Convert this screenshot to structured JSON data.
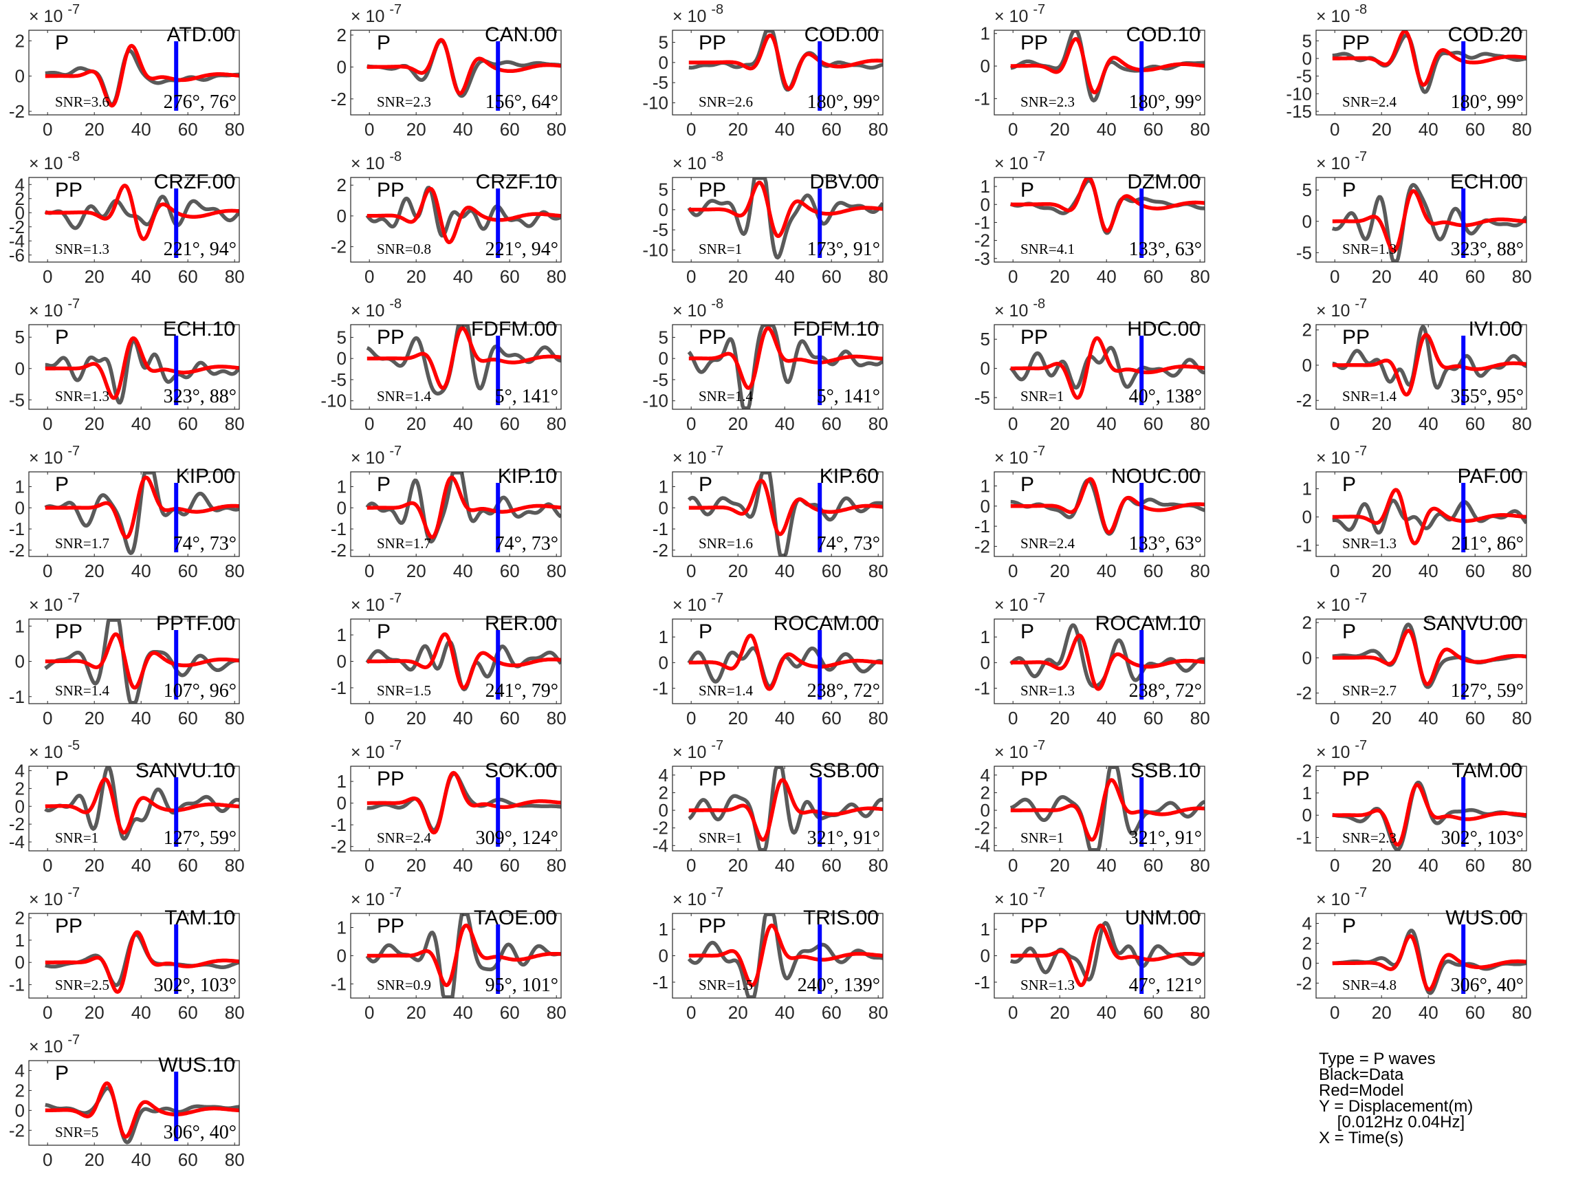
{
  "chart_data": {
    "type": "line",
    "x_ticks": [
      0,
      20,
      40,
      60,
      80
    ],
    "xlim": [
      -8,
      82
    ],
    "series_colors": {
      "data": "#5a5a5a",
      "model": "#ff0000",
      "marker": "#0000ff"
    },
    "legend": [
      "Type = P waves",
      "Black=Data",
      "Red=Model",
      "Y = Displacement(m)",
      "    [0.012Hz 0.04Hz]",
      "X = Time(s)"
    ],
    "panels": [
      {
        "station": "ATD.00",
        "phase": "P",
        "snr": "SNR=3.6",
        "azinc": "276°, 76°",
        "exp": "× 10 ^{-7}",
        "yticks": [
          2,
          0,
          -2
        ],
        "ylim": [
          -2.2,
          2.6
        ],
        "amp": 2.0
      },
      {
        "station": "CAN.00",
        "phase": "P",
        "snr": "SNR=2.3",
        "azinc": "156°, 64°",
        "exp": "× 10 ^{-7}",
        "yticks": [
          2,
          0,
          -2
        ],
        "ylim": [
          -3,
          2.3
        ],
        "amp": 2.0
      },
      {
        "station": "COD.00",
        "phase": "PP",
        "snr": "SNR=2.6",
        "azinc": "180°, 99°",
        "exp": "× 10 ^{-8}",
        "yticks": [
          5,
          0,
          -5,
          -10
        ],
        "ylim": [
          -13,
          8
        ],
        "amp": 6.0
      },
      {
        "station": "COD.10",
        "phase": "PP",
        "snr": "SNR=2.3",
        "azinc": "180°, 99°",
        "exp": "× 10 ^{-7}",
        "yticks": [
          1,
          0,
          -1
        ],
        "ylim": [
          -1.5,
          1.1
        ],
        "amp": 0.8
      },
      {
        "station": "COD.20",
        "phase": "PP",
        "snr": "SNR=2.4",
        "azinc": "180°, 99°",
        "exp": "× 10 ^{-8}",
        "yticks": [
          5,
          0,
          -5,
          -10,
          -15
        ],
        "ylim": [
          -16,
          8
        ],
        "amp": 6.0
      },
      {
        "station": "CRZF.00",
        "phase": "PP",
        "snr": "SNR=1.3",
        "azinc": "221°, 94°",
        "exp": "× 10 ^{-8}",
        "yticks": [
          4,
          2,
          0,
          -2,
          -4,
          -6
        ],
        "ylim": [
          -7,
          5
        ],
        "amp": 3.5
      },
      {
        "station": "CRZF.10",
        "phase": "PP",
        "snr": "SNR=0.8",
        "azinc": "221°, 94°",
        "exp": "× 10 ^{-8}",
        "yticks": [
          2,
          0,
          -2
        ],
        "ylim": [
          -3,
          2.5
        ],
        "amp": 2.0
      },
      {
        "station": "DBV.00",
        "phase": "PP",
        "snr": "SNR=1",
        "azinc": "173°, 91°",
        "exp": "× 10 ^{-8}",
        "yticks": [
          5,
          0,
          -5,
          -10
        ],
        "ylim": [
          -13,
          8
        ],
        "amp": 6.5
      },
      {
        "station": "DZM.00",
        "phase": "P",
        "snr": "SNR=4.1",
        "azinc": "133°, 63°",
        "exp": "× 10 ^{-7}",
        "yticks": [
          1,
          0,
          -1,
          -2,
          -3
        ],
        "ylim": [
          -3.2,
          1.5
        ],
        "amp": 1.5
      },
      {
        "station": "ECH.00",
        "phase": "P",
        "snr": "SNR=1.3",
        "azinc": "323°, 88°",
        "exp": "× 10 ^{-7}",
        "yticks": [
          5,
          0,
          -5
        ],
        "ylim": [
          -6.5,
          7
        ],
        "amp": 6.0
      },
      {
        "station": "ECH.10",
        "phase": "P",
        "snr": "SNR=1.3",
        "azinc": "323°, 88°",
        "exp": "× 10 ^{-7}",
        "yticks": [
          5,
          0,
          -5
        ],
        "ylim": [
          -6.5,
          7
        ],
        "amp": 6.0
      },
      {
        "station": "FDFM.00",
        "phase": "PP",
        "snr": "SNR=1.4",
        "azinc": "5°, 141°",
        "exp": "× 10 ^{-8}",
        "yticks": [
          5,
          0,
          -5,
          -10
        ],
        "ylim": [
          -12,
          8
        ],
        "amp": 7.0
      },
      {
        "station": "FDFM.10",
        "phase": "PP",
        "snr": "SNR=1.4",
        "azinc": "5°, 141°",
        "exp": "× 10 ^{-8}",
        "yticks": [
          5,
          0,
          -5,
          -10
        ],
        "ylim": [
          -12,
          8
        ],
        "amp": 7.0
      },
      {
        "station": "HDC.00",
        "phase": "PP",
        "snr": "SNR=1",
        "azinc": "40°, 138°",
        "exp": "× 10 ^{-8}",
        "yticks": [
          5,
          0,
          -5
        ],
        "ylim": [
          -7,
          7.5
        ],
        "amp": 6.0
      },
      {
        "station": "IVI.00",
        "phase": "PP",
        "snr": "SNR=1.4",
        "azinc": "355°, 95°",
        "exp": "× 10 ^{-7}",
        "yticks": [
          2,
          0,
          -2
        ],
        "ylim": [
          -2.5,
          2.3
        ],
        "amp": 1.6
      },
      {
        "station": "KIP.00",
        "phase": "P",
        "snr": "SNR=1.7",
        "azinc": "74°, 73°",
        "exp": "× 10 ^{-7}",
        "yticks": [
          1,
          0,
          -1,
          -2
        ],
        "ylim": [
          -2.3,
          1.7
        ],
        "amp": 1.3
      },
      {
        "station": "KIP.10",
        "phase": "P",
        "snr": "SNR=1.7",
        "azinc": "74°, 73°",
        "exp": "× 10 ^{-7}",
        "yticks": [
          1,
          0,
          -1,
          -2
        ],
        "ylim": [
          -2.3,
          1.7
        ],
        "amp": 1.3
      },
      {
        "station": "KIP.60",
        "phase": "P",
        "snr": "SNR=1.6",
        "azinc": "74°, 73°",
        "exp": "× 10 ^{-7}",
        "yticks": [
          1,
          0,
          -1,
          -2
        ],
        "ylim": [
          -2.3,
          1.7
        ],
        "amp": 1.3
      },
      {
        "station": "NOUC.00",
        "phase": "P",
        "snr": "SNR=2.4",
        "azinc": "133°, 63°",
        "exp": "× 10 ^{-7}",
        "yticks": [
          1,
          0,
          -1,
          -2
        ],
        "ylim": [
          -2.5,
          1.7
        ],
        "amp": 1.5
      },
      {
        "station": "PAF.00",
        "phase": "P",
        "snr": "SNR=1.3",
        "azinc": "211°, 86°",
        "exp": "× 10 ^{-7}",
        "yticks": [
          1,
          0,
          -1
        ],
        "ylim": [
          -1.4,
          1.6
        ],
        "amp": 1.0
      },
      {
        "station": "PPTF.00",
        "phase": "PP",
        "snr": "SNR=1.4",
        "azinc": "107°, 96°",
        "exp": "× 10 ^{-7}",
        "yticks": [
          1,
          0,
          -1
        ],
        "ylim": [
          -1.2,
          1.2
        ],
        "amp": 0.9
      },
      {
        "station": "RER.00",
        "phase": "P",
        "snr": "SNR=1.5",
        "azinc": "241°, 79°",
        "exp": "× 10 ^{-7}",
        "yticks": [
          1,
          0,
          -1
        ],
        "ylim": [
          -1.6,
          1.6
        ],
        "amp": 1.2
      },
      {
        "station": "ROCAM.00",
        "phase": "P",
        "snr": "SNR=1.4",
        "azinc": "238°, 72°",
        "exp": "× 10 ^{-7}",
        "yticks": [
          1,
          0,
          -1
        ],
        "ylim": [
          -1.6,
          1.7
        ],
        "amp": 1.2
      },
      {
        "station": "ROCAM.10",
        "phase": "P",
        "snr": "SNR=1.3",
        "azinc": "238°, 72°",
        "exp": "× 10 ^{-7}",
        "yticks": [
          1,
          0,
          -1
        ],
        "ylim": [
          -1.6,
          1.7
        ],
        "amp": 1.2
      },
      {
        "station": "SANVU.00",
        "phase": "P",
        "snr": "SNR=2.7",
        "azinc": "127°, 59°",
        "exp": "× 10 ^{-7}",
        "yticks": [
          2,
          0,
          -2
        ],
        "ylim": [
          -2.6,
          2.2
        ],
        "amp": 2.0
      },
      {
        "station": "SANVU.10",
        "phase": "P",
        "snr": "SNR=1",
        "azinc": "127°, 59°",
        "exp": "× 10 ^{-5}",
        "yticks": [
          4,
          2,
          0,
          -2,
          -4
        ],
        "ylim": [
          -5,
          4.5
        ],
        "amp": 0.01
      },
      {
        "station": "SOK.00",
        "phase": "PP",
        "snr": "SNR=2.4",
        "azinc": "309°, 124°",
        "exp": "× 10 ^{-7}",
        "yticks": [
          1,
          0,
          -1,
          -2
        ],
        "ylim": [
          -2.2,
          1.7
        ],
        "amp": 1.3
      },
      {
        "station": "SSB.00",
        "phase": "PP",
        "snr": "SNR=1",
        "azinc": "321°, 91°",
        "exp": "× 10 ^{-7}",
        "yticks": [
          4,
          2,
          0,
          -2,
          -4
        ],
        "ylim": [
          -4.6,
          5
        ],
        "amp": 1.2
      },
      {
        "station": "SSB.10",
        "phase": "PP",
        "snr": "SNR=1",
        "azinc": "321°, 91°",
        "exp": "× 10 ^{-7}",
        "yticks": [
          4,
          2,
          0,
          -2,
          -4
        ],
        "ylim": [
          -4.6,
          5
        ],
        "amp": 1.2
      },
      {
        "station": "TAM.00",
        "phase": "PP",
        "snr": "SNR=2.3",
        "azinc": "302°, 103°",
        "exp": "× 10 ^{-7}",
        "yticks": [
          2,
          1,
          0,
          -1
        ],
        "ylim": [
          -1.6,
          2.2
        ],
        "amp": 1.1
      },
      {
        "station": "TAM.10",
        "phase": "PP",
        "snr": "SNR=2.5",
        "azinc": "302°, 103°",
        "exp": "× 10 ^{-7}",
        "yticks": [
          2,
          1,
          0,
          -1
        ],
        "ylim": [
          -1.6,
          2.2
        ],
        "amp": 1.1
      },
      {
        "station": "TAOE.00",
        "phase": "PP",
        "snr": "SNR=0.9",
        "azinc": "95°, 101°",
        "exp": "× 10 ^{-7}",
        "yticks": [
          1,
          0,
          -1
        ],
        "ylim": [
          -1.5,
          1.5
        ],
        "amp": 1.0
      },
      {
        "station": "TRIS.00",
        "phase": "PP",
        "snr": "SNR=1.5",
        "azinc": "240°, 139°",
        "exp": "× 10 ^{-7}",
        "yticks": [
          1,
          0,
          -1
        ],
        "ylim": [
          -1.6,
          1.6
        ],
        "amp": 0.6
      },
      {
        "station": "UNM.00",
        "phase": "PP",
        "snr": "SNR=1.3",
        "azinc": "47°, 121°",
        "exp": "× 10 ^{-7}",
        "yticks": [
          1,
          0,
          -1
        ],
        "ylim": [
          -1.6,
          1.6
        ],
        "amp": 0.3
      },
      {
        "station": "WUS.00",
        "phase": "P",
        "snr": "SNR=4.8",
        "azinc": "306°, 40°",
        "exp": "× 10 ^{-7}",
        "yticks": [
          4,
          2,
          0,
          -2
        ],
        "ylim": [
          -3.5,
          5
        ],
        "amp": 4.2
      },
      {
        "station": "WUS.10",
        "phase": "P",
        "snr": "SNR=5",
        "azinc": "306°, 40°",
        "exp": "× 10 ^{-7}",
        "yticks": [
          4,
          2,
          0,
          -2
        ],
        "ylim": [
          -3.5,
          5
        ],
        "amp": 4.2
      }
    ]
  }
}
